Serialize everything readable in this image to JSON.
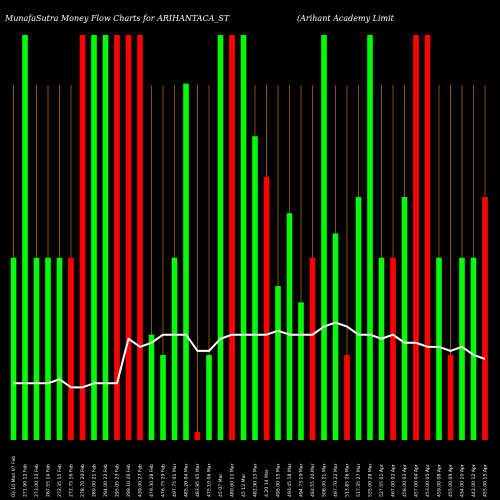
{
  "chart_data": {
    "type": "bar",
    "title": "MunafaSutra  Money Flow  Charts for ARIHANTACA_ST",
    "subtitle": "(Arihant Academy  Limit",
    "background": "#000000",
    "colors": {
      "up": "#00ff00",
      "down": "#ff0000",
      "line": "#ffffff",
      "volume_marker": "#c8700a"
    },
    "categories": [
      "07-Feb 2024 Sat",
      "12 Feb 2024",
      "13 Feb 2024",
      "14 Feb 2024",
      "15 Feb 2024",
      "16 Feb 2024",
      "20 Feb 2024",
      "21 Feb 2024",
      "22 Feb 2024",
      "23 Feb 2024",
      "26 Feb 2024",
      "27 Feb 2024",
      "28 Feb 2024",
      "29 Feb 2024",
      "01 Mar 2024",
      "04 Mar 2024",
      "05 Mar 2024",
      "06 Mar 2024",
      "07 Mar 2024",
      "11 Mar 2024",
      "12 Mar 2024",
      "13 Mar 2024",
      "14 Mar 2024",
      "15 Mar 2024",
      "18 Mar 2024",
      "19 Mar 2024",
      "20 Mar 2024",
      "21 Mar 2024",
      "22 Mar 2024",
      "26 Mar 2024",
      "27 Mar 2024",
      "28 Mar 2024",
      "01 Apr 2024",
      "02 Apr 2024",
      "03 Apr 2024",
      "04 Apr 2024",
      "05 Apr 2024",
      "08 Apr 2024",
      "09 Apr 2024",
      "10 Apr 2024",
      "12 Apr 2024",
      "15 Apr 2024"
    ],
    "x_tick_labels": [
      "03.10 Mon 07 Feb",
      "271.90 12 Feb",
      "273.00 13 Feb",
      "267.55 14 Feb",
      "272.35 15 Feb",
      "272.75 16 Feb",
      "278.70 20 Feb",
      "289.00 21 Feb",
      "294.00 22 Feb",
      "295.05 23 Feb",
      "299.10 26 Feb",
      "439.00 27 Feb",
      "479.30 28 Feb",
      "476.75 29 Feb",
      "497.75 01 Mar",
      "485.20 04 Mar",
      "483.85 05 Mar",
      "475.10 06 Mar",
      "45 07 Mar",
      "480.60 11 Mar",
      "45 12 Mar",
      "482.90 13 Mar",
      "4.20 14 Mar",
      "495.00 15 Mar",
      "493.45 18 Mar",
      "494.73 19 Mar",
      "492.55 20 Mar",
      "508.00 21 Mar",
      "497.70 22 Mar",
      "513.85 26 Mar",
      "517.35 27 Mar",
      "535.00 28 Mar",
      "527.55 01 Apr",
      "467.00 02 Apr",
      "458.00 03 Apr",
      "457.00 04 Apr",
      "453.00 05 Apr",
      "459.00 08 Apr",
      "455.00 09 Apr",
      "434.00 10 Apr",
      "442.00 12 Apr",
      "455.00 15 Apr"
    ],
    "series": [
      {
        "type": "bar",
        "values": [
          45,
          100,
          45,
          45,
          45,
          45,
          100,
          100,
          100,
          100,
          100,
          100,
          26,
          21,
          45,
          88,
          2,
          21,
          100,
          100,
          100,
          75,
          65,
          38,
          56,
          34,
          45,
          100,
          51,
          21,
          60,
          100,
          45,
          45,
          60,
          100,
          100,
          45,
          21,
          45,
          45,
          60
        ],
        "directions": [
          "up",
          "up",
          "up",
          "up",
          "up",
          "down",
          "down",
          "up",
          "up",
          "down",
          "down",
          "down",
          "up",
          "up",
          "up",
          "up",
          "down",
          "up",
          "up",
          "down",
          "up",
          "up",
          "down",
          "up",
          "up",
          "up",
          "down",
          "up",
          "up",
          "down",
          "up",
          "up",
          "up",
          "down",
          "up",
          "down",
          "down",
          "up",
          "down",
          "up",
          "up",
          "down"
        ]
      },
      {
        "type": "line",
        "values": [
          14,
          14,
          14,
          14,
          15,
          13,
          13,
          14,
          14,
          14,
          25,
          23,
          24,
          26,
          26,
          26,
          22,
          22,
          25,
          26,
          26,
          26,
          26,
          27,
          26,
          26,
          26,
          28,
          29,
          28,
          26,
          26,
          25,
          26,
          24,
          24,
          23,
          23,
          22,
          23,
          21,
          20
        ]
      }
    ],
    "ylim": [
      0,
      100
    ],
    "grid": false
  }
}
